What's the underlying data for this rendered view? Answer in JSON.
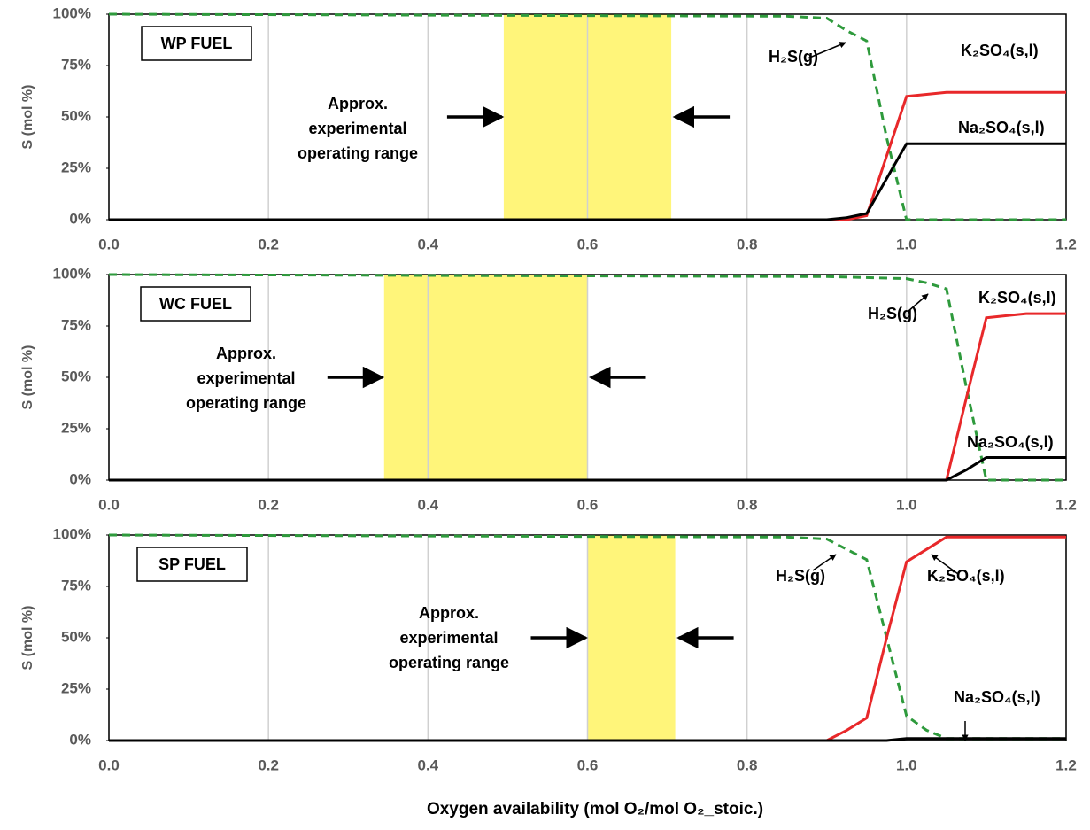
{
  "chart_data": [
    {
      "type": "line",
      "label": "WP FUEL",
      "y_label": "S (mol %)",
      "range_label": [
        "Approx.",
        "experimental",
        "operating range"
      ],
      "shaded_range": [
        0.495,
        0.705
      ],
      "shade_color": "#fff57a",
      "x": [
        0,
        0.85,
        0.9,
        0.925,
        0.95,
        0.975,
        1.0,
        1.05,
        1.1,
        1.15,
        1.2
      ],
      "series": [
        {
          "name": "H₂S(g)",
          "color": "#2e9a3c",
          "dashed": true,
          "values": [
            100,
            99,
            98,
            92,
            87,
            40,
            0,
            0,
            0,
            0,
            0
          ]
        },
        {
          "name": "K₂SO₄(s,l)",
          "color": "#e8282a",
          "values": [
            0,
            0,
            0,
            0,
            2,
            31,
            60,
            62,
            62,
            62,
            62
          ]
        },
        {
          "name": "Na₂SO₄(s,l)",
          "color": "#000000",
          "values": [
            0,
            0,
            0,
            1,
            3,
            20,
            37,
            37,
            37,
            37,
            37
          ]
        }
      ],
      "xlim": [
        0,
        1.2
      ],
      "ylim": [
        0,
        100
      ],
      "grid": "x",
      "xticks": [
        {
          "value": 0,
          "label": "0.0"
        },
        0.2,
        0.4,
        0.6,
        0.8,
        {
          "value": 1,
          "label": "1.0"
        },
        1.2
      ],
      "yticks": [
        {
          "value": 0,
          "label": "0%"
        },
        {
          "value": 25,
          "label": "25%"
        },
        {
          "value": 50,
          "label": "50%"
        },
        {
          "value": 75,
          "label": "75%"
        },
        {
          "value": 100,
          "label": "100%"
        }
      ]
    },
    {
      "type": "line",
      "label": "WC FUEL",
      "y_label": "S (mol %)",
      "range_label": [
        "Approx.",
        "experimental",
        "operating range"
      ],
      "shaded_range": [
        0.345,
        0.6
      ],
      "shade_color": "#fff57a",
      "x": [
        0,
        0.9,
        1.0,
        1.025,
        1.05,
        1.075,
        1.1,
        1.15,
        1.2
      ],
      "series": [
        {
          "name": "H₂S(g)",
          "color": "#2e9a3c",
          "dashed": true,
          "values": [
            100,
            99,
            98,
            96,
            93,
            45,
            0,
            0,
            0
          ]
        },
        {
          "name": "K₂SO₄(s,l)",
          "color": "#e8282a",
          "values": [
            0,
            0,
            0,
            0,
            0,
            40,
            79,
            81,
            81
          ]
        },
        {
          "name": "Na₂SO₄(s,l)",
          "color": "#000000",
          "values": [
            0,
            0,
            0,
            0,
            0,
            5,
            11,
            11,
            11
          ]
        }
      ],
      "xlim": [
        0,
        1.2
      ],
      "ylim": [
        0,
        100
      ],
      "grid": "x",
      "xticks": [
        {
          "value": 0,
          "label": "0.0"
        },
        0.2,
        0.4,
        0.6,
        0.8,
        {
          "value": 1,
          "label": "1.0"
        },
        1.2
      ],
      "yticks": [
        {
          "value": 0,
          "label": "0%"
        },
        {
          "value": 25,
          "label": "25%"
        },
        {
          "value": 50,
          "label": "50%"
        },
        {
          "value": 75,
          "label": "75%"
        },
        {
          "value": 100,
          "label": "100%"
        }
      ]
    },
    {
      "type": "line",
      "label": "SP FUEL",
      "y_label": "S (mol %)",
      "range_label": [
        "Approx.",
        "experimental",
        "operating range"
      ],
      "shaded_range": [
        0.6,
        0.71
      ],
      "shade_color": "#fff57a",
      "x": [
        0,
        0.85,
        0.9,
        0.925,
        0.95,
        0.975,
        1.0,
        1.025,
        1.05,
        1.1,
        1.15,
        1.2
      ],
      "series": [
        {
          "name": "H₂S(g)",
          "color": "#2e9a3c",
          "dashed": true,
          "values": [
            100,
            99,
            98,
            93,
            88,
            50,
            12,
            5,
            1,
            1,
            1,
            1
          ]
        },
        {
          "name": "K₂SO₄(s,l)",
          "color": "#e8282a",
          "values": [
            0,
            0,
            0,
            5,
            11,
            50,
            87,
            93,
            99,
            99,
            99,
            99
          ]
        },
        {
          "name": "Na₂SO₄(s,l)",
          "color": "#000000",
          "values": [
            0,
            0,
            0,
            0,
            0,
            0,
            1,
            1,
            1,
            1,
            1,
            1
          ]
        }
      ],
      "xlim": [
        0,
        1.2
      ],
      "ylim": [
        0,
        100
      ],
      "grid": "x",
      "xticks": [
        {
          "value": 0,
          "label": "0.0"
        },
        0.2,
        0.4,
        0.6,
        0.8,
        {
          "value": 1,
          "label": "1.0"
        },
        1.2
      ],
      "yticks": [
        {
          "value": 0,
          "label": "0%"
        },
        {
          "value": 25,
          "label": "25%"
        },
        {
          "value": 50,
          "label": "50%"
        },
        {
          "value": 75,
          "label": "75%"
        },
        {
          "value": 100,
          "label": "100%"
        }
      ]
    }
  ],
  "figure": {
    "x_label": "Oxygen availability (mol O₂/mol O₂_stoic.)"
  }
}
